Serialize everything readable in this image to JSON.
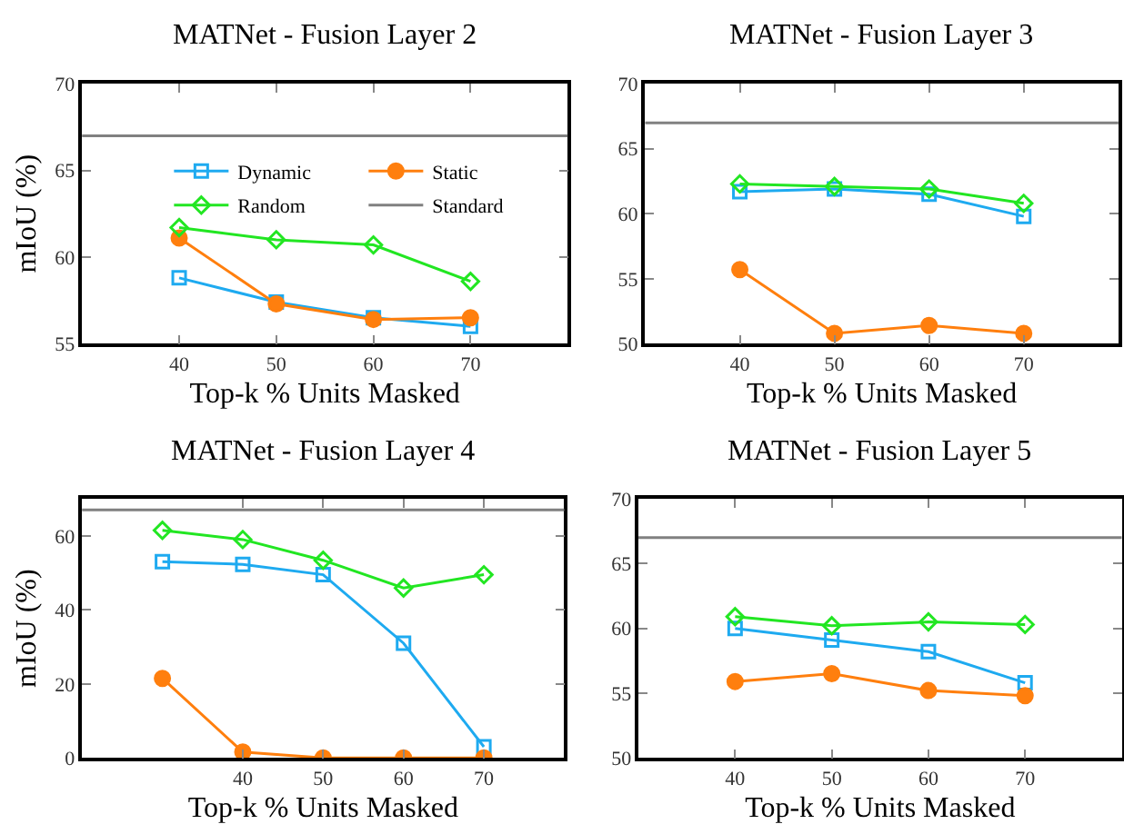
{
  "chart_data": [
    {
      "type": "line",
      "title": "MATNet - Fusion Layer 2",
      "xlabel": "Top-k % Units Masked",
      "ylabel": "mIoU (%)",
      "x": [
        40,
        50,
        60,
        70
      ],
      "xlim": [
        30,
        80
      ],
      "xticks": [
        40,
        50,
        60,
        70
      ],
      "ylim": [
        55,
        70
      ],
      "yticks": [
        55,
        60,
        65,
        70
      ],
      "grid": false,
      "legend": "top right",
      "series": [
        {
          "name": "Dynamic",
          "color": "#1eaaf0",
          "marker": "square",
          "values": [
            58.8,
            57.4,
            56.5,
            56.0
          ]
        },
        {
          "name": "Static",
          "color": "#ff7f0e",
          "marker": "circle",
          "values": [
            61.1,
            57.3,
            56.4,
            56.5
          ]
        },
        {
          "name": "Random",
          "color": "#22e622",
          "marker": "diamond",
          "values": [
            61.7,
            61.0,
            60.7,
            58.6
          ]
        }
      ],
      "ref_lines": [
        {
          "axis": "y",
          "value": 67,
          "label": "Standard",
          "color": "#808080"
        }
      ]
    },
    {
      "type": "line",
      "title": "MATNet - Fusion Layer 3",
      "xlabel": "Top-k % Units Masked",
      "x": [
        40,
        50,
        60,
        70
      ],
      "xlim": [
        30,
        80
      ],
      "xticks": [
        40,
        50,
        60,
        70
      ],
      "ylim": [
        50,
        70
      ],
      "yticks": [
        50,
        55,
        60,
        65,
        70
      ],
      "grid": false,
      "series": [
        {
          "color": "#1eaaf0",
          "marker": "square",
          "values": [
            61.7,
            61.9,
            61.5,
            59.8
          ]
        },
        {
          "color": "#ff7f0e",
          "marker": "circle",
          "values": [
            55.7,
            50.8,
            51.4,
            50.8
          ]
        },
        {
          "color": "#22e622",
          "marker": "diamond",
          "values": [
            62.3,
            62.1,
            61.9,
            60.8
          ]
        }
      ],
      "ref_lines": [
        {
          "axis": "y",
          "value": 67,
          "color": "#808080"
        }
      ]
    },
    {
      "type": "line",
      "title": "MATNet - Fusion Layer 4",
      "xlabel": "Top-k % Units Masked",
      "ylabel": "mIoU (%)",
      "x": [
        30,
        40,
        50,
        60,
        70
      ],
      "xlim": [
        20,
        80
      ],
      "xticks": [
        40,
        50,
        60,
        70
      ],
      "ylim": [
        0,
        70
      ],
      "yticks": [
        0,
        20,
        40,
        60
      ],
      "grid": false,
      "series": [
        {
          "color": "#1eaaf0",
          "marker": "square",
          "values": [
            53.0,
            52.3,
            49.5,
            31.0,
            3.0
          ]
        },
        {
          "color": "#ff7f0e",
          "marker": "circle",
          "values": [
            21.5,
            1.6,
            0,
            0,
            0
          ]
        },
        {
          "color": "#22e622",
          "marker": "diamond",
          "values": [
            61.5,
            59.0,
            53.4,
            45.9,
            49.5
          ]
        }
      ],
      "ref_lines": [
        {
          "axis": "y",
          "value": 67,
          "color": "#808080"
        }
      ]
    },
    {
      "type": "line",
      "title": "MATNet - Fusion Layer 5",
      "xlabel": "Top-k % Units Masked",
      "x": [
        40,
        50,
        60,
        70
      ],
      "xlim": [
        30,
        80
      ],
      "xticks": [
        40,
        50,
        60,
        70
      ],
      "ylim": [
        50,
        70
      ],
      "yticks": [
        50,
        55,
        60,
        65,
        70
      ],
      "grid": false,
      "series": [
        {
          "color": "#1eaaf0",
          "marker": "square",
          "values": [
            60.0,
            59.1,
            58.2,
            55.8
          ]
        },
        {
          "color": "#ff7f0e",
          "marker": "circle",
          "values": [
            55.9,
            56.5,
            55.2,
            54.8
          ]
        },
        {
          "color": "#22e622",
          "marker": "diamond",
          "values": [
            60.9,
            60.2,
            60.5,
            60.3
          ]
        }
      ],
      "ref_lines": [
        {
          "axis": "y",
          "value": 67,
          "color": "#808080"
        }
      ]
    }
  ]
}
